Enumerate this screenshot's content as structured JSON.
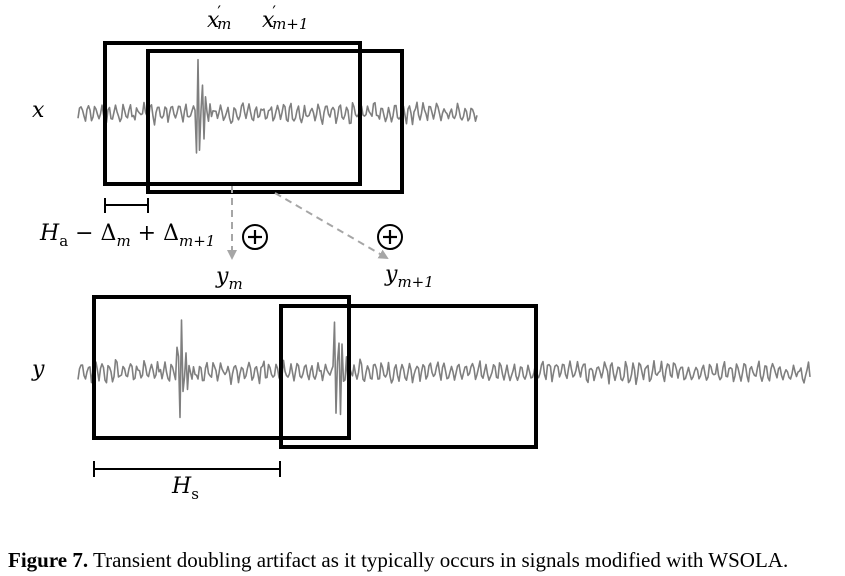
{
  "labels": {
    "x": "x",
    "y": "y",
    "xm_base": "x",
    "xm_prime": "′",
    "xm_sub": "m",
    "xm1_base": "x",
    "xm1_prime": "′",
    "xm1_sub": "m+1",
    "ym_base": "y",
    "ym_sub": "m",
    "ym1_base": "y",
    "ym1_sub": "m+1",
    "ha_base": "H",
    "ha_sub": "a",
    "ha_rest1": " − Δ",
    "ha_rest1_sub": "m",
    "ha_rest2": " + Δ",
    "ha_rest2_sub": "m+1",
    "hs_base": "H",
    "hs_sub": "s",
    "plus_symbol": "+"
  },
  "caption": {
    "label": "Figure 7.",
    "text": " Transient doubling artifact as it typically occurs in signals modified with WSOLA."
  },
  "colors": {
    "frame": "#000000",
    "waveform": "#7f7f7f",
    "arrow": "#a6a6a6"
  }
}
